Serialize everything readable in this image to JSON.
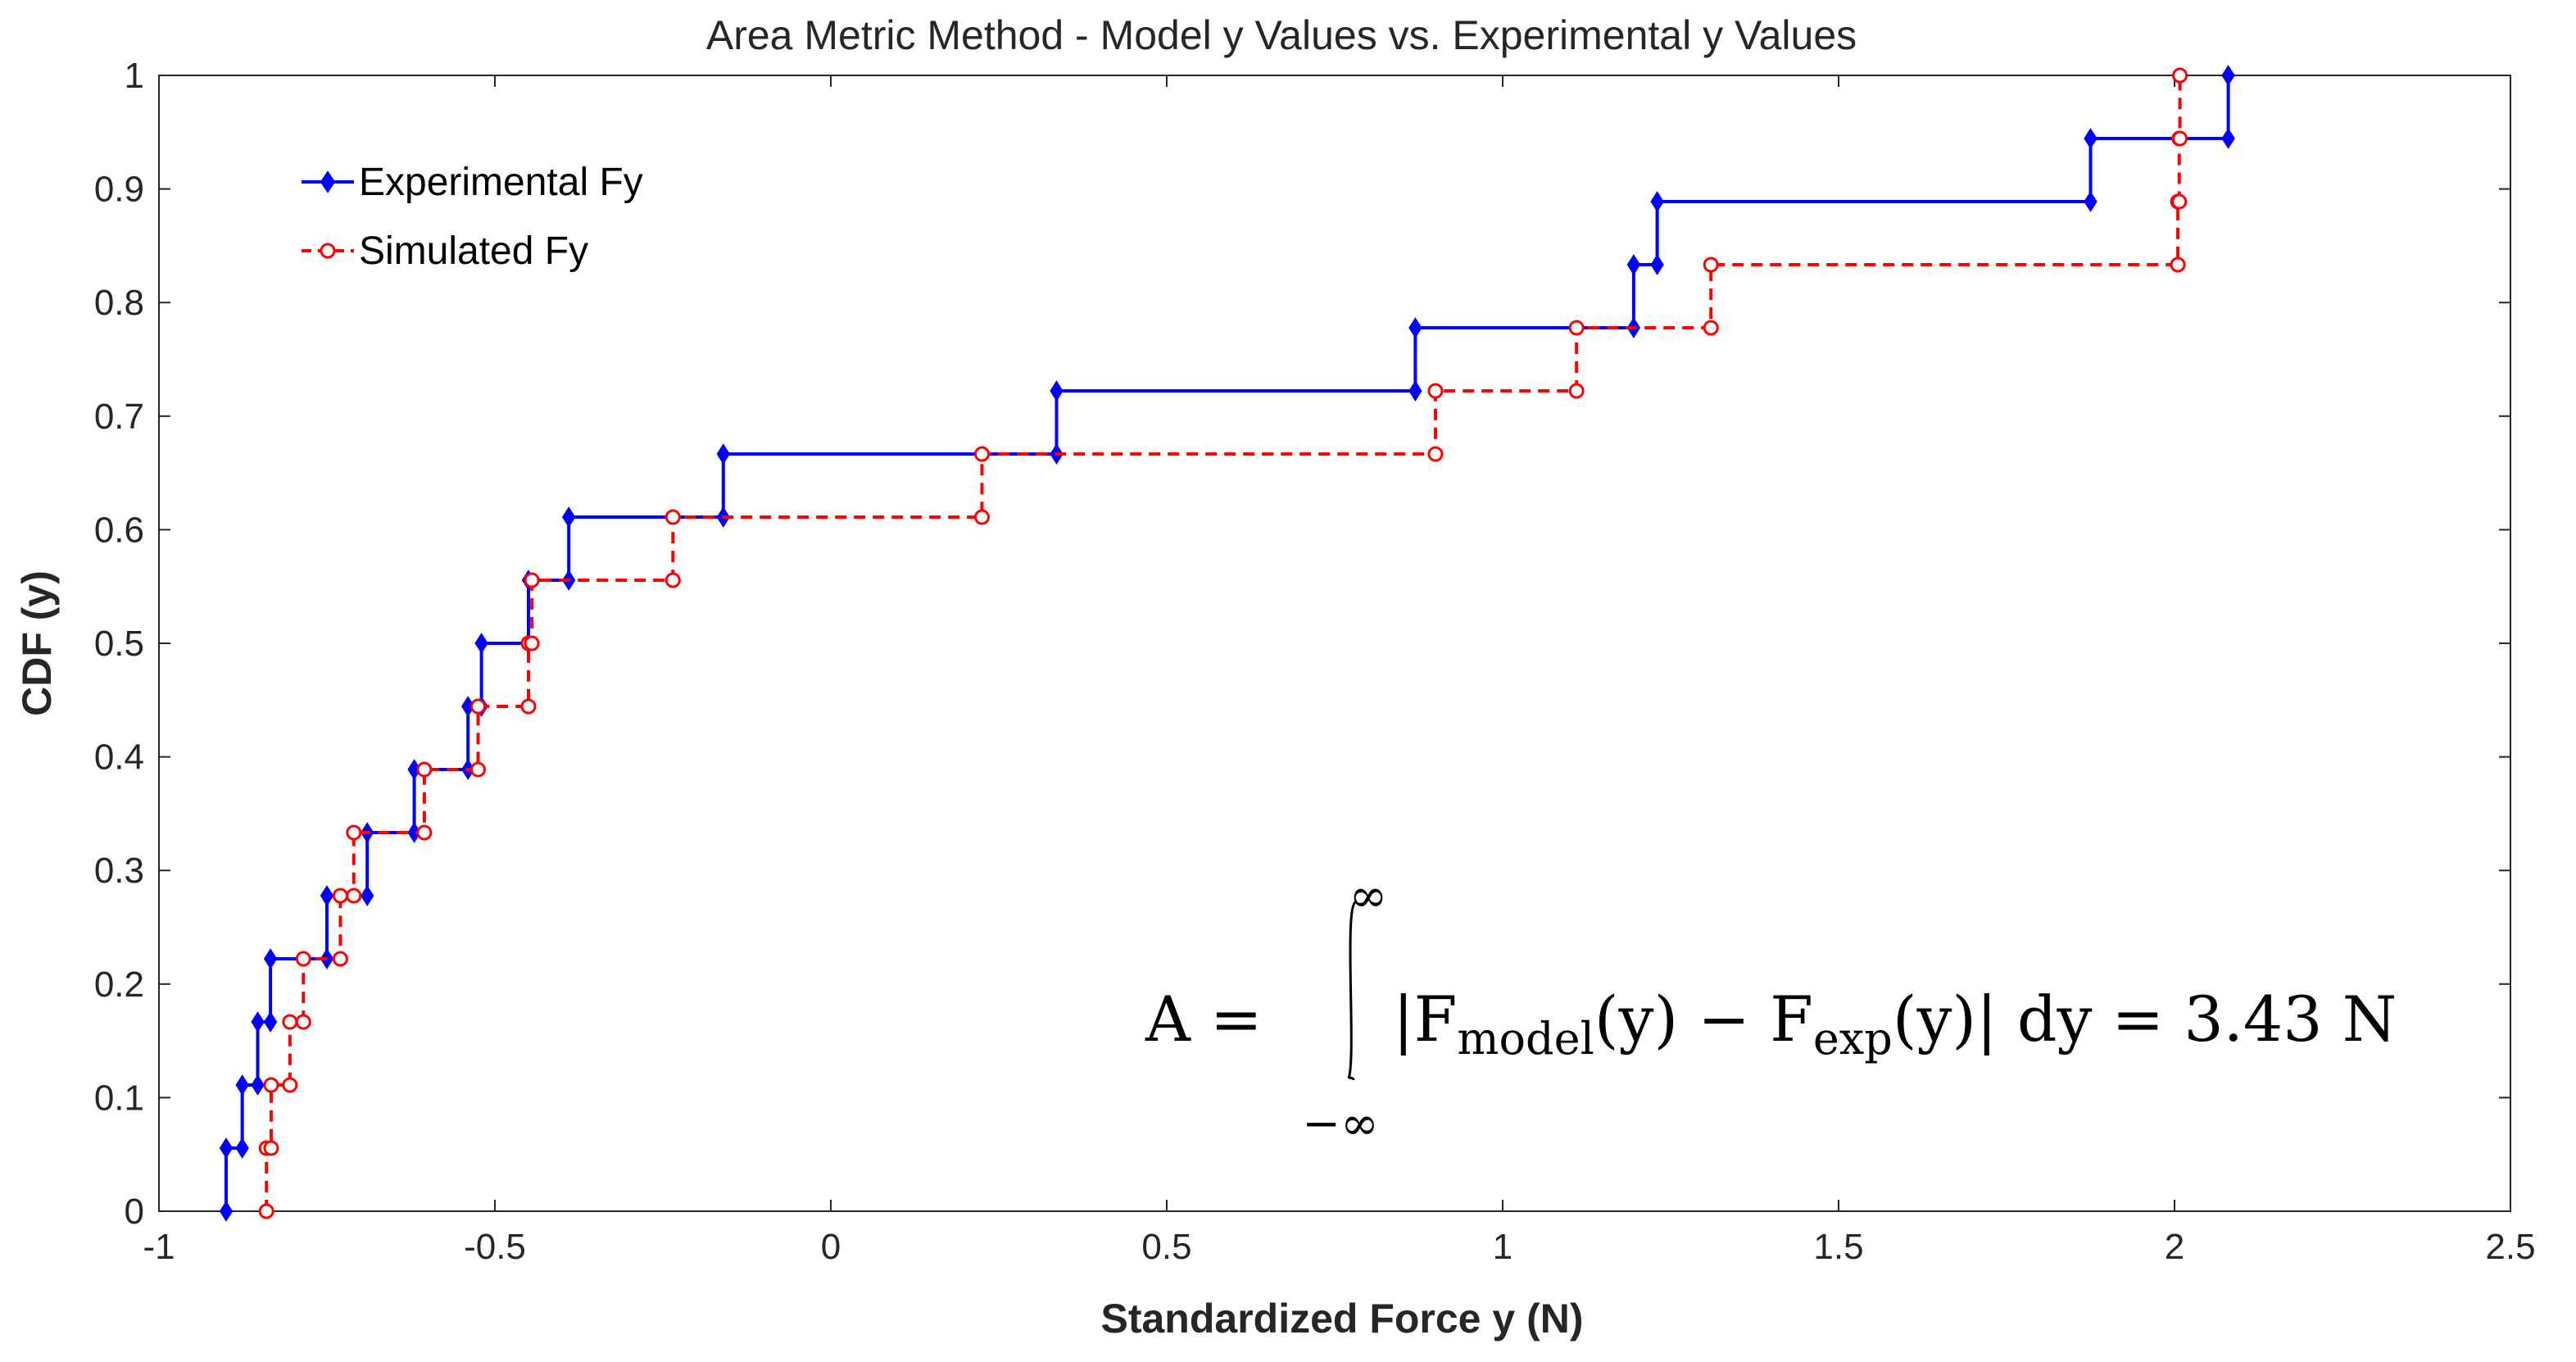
{
  "chart_data": {
    "type": "line",
    "title": "Area Metric Method - Model y Values vs. Experimental y Values",
    "xlabel": "Standardized Force y (N)",
    "ylabel": "CDF (y)",
    "xlim": [
      -1,
      2.5
    ],
    "ylim": [
      0,
      1
    ],
    "xticks": [
      -1,
      -0.5,
      0,
      0.5,
      1,
      1.5,
      2,
      2.5
    ],
    "xtick_labels": [
      "-1",
      "-0.5",
      "0",
      "0.5",
      "1",
      "1.5",
      "2",
      "2.5"
    ],
    "yticks": [
      0,
      0.1,
      0.2,
      0.3,
      0.4,
      0.5,
      0.6,
      0.7,
      0.8,
      0.9,
      1
    ],
    "ytick_labels": [
      "0",
      "0.1",
      "0.2",
      "0.3",
      "0.4",
      "0.5",
      "0.6",
      "0.7",
      "0.8",
      "0.9",
      "1"
    ],
    "legend_position": "top-left",
    "series": [
      {
        "name": "Experimental Fy",
        "color": "#0000ff",
        "style": "solid",
        "marker": "diamond",
        "x_sorted": [
          -0.9,
          -0.876,
          -0.853,
          -0.834,
          -0.75,
          -0.69,
          -0.62,
          -0.54,
          -0.52,
          -0.45,
          -0.39,
          -0.16,
          0.336,
          0.87,
          1.195,
          1.23,
          1.875,
          2.08
        ]
      },
      {
        "name": "Simulated Fy",
        "color": "#ff0000",
        "style": "dashed",
        "marker": "circle",
        "x_sorted": [
          -0.84,
          -0.833,
          -0.805,
          -0.785,
          -0.73,
          -0.71,
          -0.605,
          -0.525,
          -0.45,
          -0.445,
          -0.235,
          0.225,
          0.9,
          1.11,
          1.31,
          2.005,
          2.007,
          2.008
        ]
      }
    ],
    "annotation": {
      "lhs": "A =",
      "upper_limit": "∞",
      "lower_limit": "−∞",
      "integrand_open": "|F",
      "model_sub": "model",
      "mid_term": "(y) − F",
      "exp_sub": "exp",
      "integrand_close": "(y)| dy = 3.43 N"
    }
  }
}
